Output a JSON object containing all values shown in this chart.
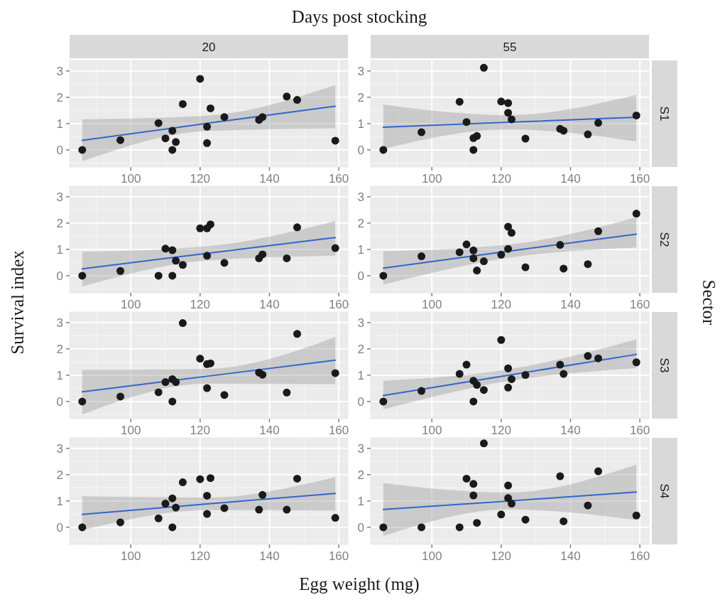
{
  "chart_data": [
    {
      "type": "scatter",
      "title": "20",
      "ylabel": "Survival index",
      "annotations": [
        "Days post stocking",
        "Sector"
      ],
      "xlim": [
        82.35,
        162.65
      ],
      "ylim": [
        -0.65,
        3.4
      ],
      "xticks": [
        100,
        120,
        140,
        160
      ],
      "yticks": [
        0,
        1,
        2,
        3
      ],
      "grid": true,
      "marker": "circle",
      "series": [
        {
          "type": "scatter",
          "color": "#1a1a1a",
          "x": [
            86,
            97,
            108,
            110,
            112,
            112,
            113,
            115,
            120,
            122,
            122,
            123,
            127,
            137,
            138,
            145,
            148,
            159
          ],
          "values": [
            0,
            0.37,
            1.02,
            0.44,
            0.73,
            0,
            0.3,
            1.74,
            2.7,
            0.88,
            0.26,
            1.58,
            1.25,
            1.14,
            1.25,
            2.03,
            1.9,
            0.35
          ]
        },
        {
          "type": "line",
          "color": "#3366cc",
          "x": [
            86,
            122,
            159
          ],
          "marker": "none",
          "values": [
            0.36,
            1.01,
            1.66
          ],
          "lower": [
            -0.43,
            0.72,
            0.82
          ],
          "upper": [
            1.16,
            1.3,
            2.46
          ]
        }
      ]
    },
    {
      "type": "scatter",
      "title": "55",
      "y2label": "S1",
      "xlim": [
        82.35,
        162.65
      ],
      "ylim": [
        -0.65,
        3.4
      ],
      "xticks": [
        100,
        120,
        140,
        160
      ],
      "yticks": [
        0,
        1,
        2,
        3
      ],
      "grid": true,
      "marker": "circle",
      "series": [
        {
          "type": "scatter",
          "color": "#1a1a1a",
          "x": [
            86,
            97,
            108,
            110,
            112,
            113,
            112,
            115,
            120,
            122,
            122,
            123,
            127,
            137,
            138,
            145,
            148,
            159
          ],
          "values": [
            0,
            0.67,
            1.83,
            1.06,
            0.45,
            0.53,
            0,
            3.12,
            1.84,
            1.78,
            1.41,
            1.16,
            0.43,
            0.8,
            0.73,
            0.59,
            1.03,
            1.31
          ]
        },
        {
          "type": "line",
          "color": "#3366cc",
          "x": [
            86,
            122,
            159
          ],
          "marker": "none",
          "values": [
            0.86,
            1.05,
            1.24
          ],
          "lower": [
            0.04,
            0.78,
            0.32
          ],
          "upper": [
            1.72,
            1.32,
            2.09
          ]
        }
      ]
    },
    {
      "type": "scatter",
      "xlim": [
        82.35,
        162.65
      ],
      "ylim": [
        -0.65,
        3.4
      ],
      "xticks": [
        100,
        120,
        140,
        160
      ],
      "yticks": [
        0,
        1,
        2,
        3
      ],
      "grid": true,
      "marker": "circle",
      "series": [
        {
          "type": "scatter",
          "color": "#1a1a1a",
          "x": [
            86,
            97,
            108,
            110,
            112,
            112,
            113,
            115,
            120,
            122,
            123,
            122,
            127,
            137,
            138,
            145,
            148,
            159
          ],
          "values": [
            0,
            0.18,
            0,
            1.03,
            0.97,
            0,
            0.57,
            0.41,
            1.8,
            1.8,
            1.95,
            0.76,
            0.49,
            0.66,
            0.81,
            0.66,
            1.84,
            1.05
          ]
        },
        {
          "type": "line",
          "color": "#3366cc",
          "x": [
            86,
            122,
            159
          ],
          "marker": "none",
          "values": [
            0.26,
            0.85,
            1.45
          ],
          "lower": [
            -0.41,
            0.58,
            0.76
          ],
          "upper": [
            0.91,
            1.12,
            2.08
          ]
        }
      ]
    },
    {
      "type": "scatter",
      "y2label": "S2",
      "xlim": [
        82.35,
        162.65
      ],
      "ylim": [
        -0.65,
        3.4
      ],
      "xticks": [
        100,
        120,
        140,
        160
      ],
      "yticks": [
        0,
        1,
        2,
        3
      ],
      "grid": true,
      "marker": "circle",
      "series": [
        {
          "type": "scatter",
          "color": "#1a1a1a",
          "x": [
            86,
            97,
            108,
            110,
            112,
            112,
            113,
            115,
            120,
            122,
            123,
            122,
            127,
            137,
            138,
            145,
            148,
            159
          ],
          "values": [
            0,
            0.74,
            0.89,
            1.19,
            0.96,
            0.66,
            0.2,
            0.55,
            0.8,
            1.86,
            1.63,
            1.02,
            0.32,
            1.17,
            0.27,
            0.44,
            1.69,
            2.36
          ]
        },
        {
          "type": "line",
          "color": "#3366cc",
          "x": [
            86,
            122,
            159
          ],
          "marker": "none",
          "values": [
            0.29,
            0.93,
            1.58
          ],
          "lower": [
            -0.34,
            0.68,
            1.07
          ],
          "upper": [
            0.93,
            1.18,
            2.22
          ]
        }
      ]
    },
    {
      "type": "scatter",
      "xlim": [
        82.35,
        162.65
      ],
      "ylim": [
        -0.65,
        3.4
      ],
      "xticks": [
        100,
        120,
        140,
        160
      ],
      "yticks": [
        0,
        1,
        2,
        3
      ],
      "grid": true,
      "marker": "circle",
      "series": [
        {
          "type": "scatter",
          "color": "#1a1a1a",
          "x": [
            86,
            97,
            108,
            110,
            112,
            112,
            113,
            115,
            120,
            122,
            123,
            122,
            127,
            137,
            138,
            145,
            148,
            159
          ],
          "values": [
            0,
            0.19,
            0.35,
            0.74,
            0.85,
            0,
            0.74,
            2.98,
            1.63,
            1.42,
            1.45,
            0.51,
            0.25,
            1.1,
            1.02,
            0.34,
            2.57,
            1.08
          ]
        },
        {
          "type": "line",
          "color": "#3366cc",
          "x": [
            86,
            122,
            159
          ],
          "marker": "none",
          "values": [
            0.37,
            0.96,
            1.57
          ],
          "lower": [
            -0.49,
            0.68,
            0.66
          ],
          "upper": [
            1.2,
            1.24,
            2.45
          ]
        }
      ]
    },
    {
      "type": "scatter",
      "y2label": "S3",
      "xlim": [
        82.35,
        162.65
      ],
      "ylim": [
        -0.65,
        3.4
      ],
      "xticks": [
        100,
        120,
        140,
        160
      ],
      "yticks": [
        0,
        1,
        2,
        3
      ],
      "grid": true,
      "marker": "circle",
      "series": [
        {
          "type": "scatter",
          "color": "#1a1a1a",
          "x": [
            86,
            97,
            108,
            110,
            112,
            112,
            113,
            115,
            120,
            122,
            123,
            122,
            127,
            137,
            138,
            145,
            148,
            159
          ],
          "values": [
            0,
            0.4,
            1.05,
            1.4,
            0.79,
            0,
            0.63,
            0.44,
            2.34,
            1.26,
            0.85,
            0.53,
            1.01,
            1.4,
            1.05,
            1.73,
            1.64,
            1.49
          ]
        },
        {
          "type": "line",
          "color": "#3366cc",
          "x": [
            86,
            122,
            159
          ],
          "marker": "none",
          "values": [
            0.23,
            1.0,
            1.79
          ],
          "lower": [
            -0.3,
            0.78,
            1.27
          ],
          "upper": [
            0.79,
            1.22,
            2.36
          ]
        }
      ]
    },
    {
      "type": "scatter",
      "xlabel": "Egg weight (mg)",
      "xlim": [
        82.35,
        162.65
      ],
      "ylim": [
        -0.65,
        3.4
      ],
      "xticks": [
        100,
        120,
        140,
        160
      ],
      "yticks": [
        0,
        1,
        2,
        3
      ],
      "grid": true,
      "marker": "circle",
      "series": [
        {
          "type": "scatter",
          "color": "#1a1a1a",
          "x": [
            86,
            97,
            108,
            110,
            112,
            112,
            113,
            115,
            120,
            123,
            122,
            122,
            127,
            137,
            138,
            145,
            148,
            159
          ],
          "values": [
            0,
            0.19,
            0.34,
            0.9,
            1.1,
            0,
            0.75,
            1.71,
            1.83,
            1.87,
            1.2,
            0.51,
            0.73,
            0.67,
            1.23,
            0.67,
            1.85,
            0.36
          ]
        },
        {
          "type": "line",
          "color": "#3366cc",
          "x": [
            86,
            122,
            159
          ],
          "marker": "none",
          "values": [
            0.49,
            0.89,
            1.29
          ],
          "lower": [
            -0.11,
            0.65,
            0.64
          ],
          "upper": [
            1.18,
            1.13,
            1.91
          ]
        }
      ]
    },
    {
      "type": "scatter",
      "y2label": "S4",
      "xlim": [
        82.35,
        162.65
      ],
      "ylim": [
        -0.65,
        3.4
      ],
      "xticks": [
        100,
        120,
        140,
        160
      ],
      "yticks": [
        0,
        1,
        2,
        3
      ],
      "grid": true,
      "marker": "circle",
      "series": [
        {
          "type": "scatter",
          "color": "#1a1a1a",
          "x": [
            86,
            97,
            108,
            110,
            112,
            112,
            113,
            115,
            120,
            122,
            122,
            123,
            127,
            137,
            138,
            145,
            148,
            159
          ],
          "values": [
            0,
            0,
            0,
            1.85,
            1.65,
            1.21,
            0.17,
            3.19,
            0.49,
            1.59,
            1.11,
            0.9,
            0.29,
            1.94,
            0.23,
            0.83,
            2.13,
            0.45
          ]
        },
        {
          "type": "line",
          "color": "#3366cc",
          "x": [
            86,
            122,
            159
          ],
          "marker": "none",
          "values": [
            0.68,
            1.0,
            1.34
          ],
          "lower": [
            -0.33,
            0.68,
            0.28
          ],
          "upper": [
            1.68,
            1.32,
            2.38
          ]
        }
      ]
    }
  ]
}
